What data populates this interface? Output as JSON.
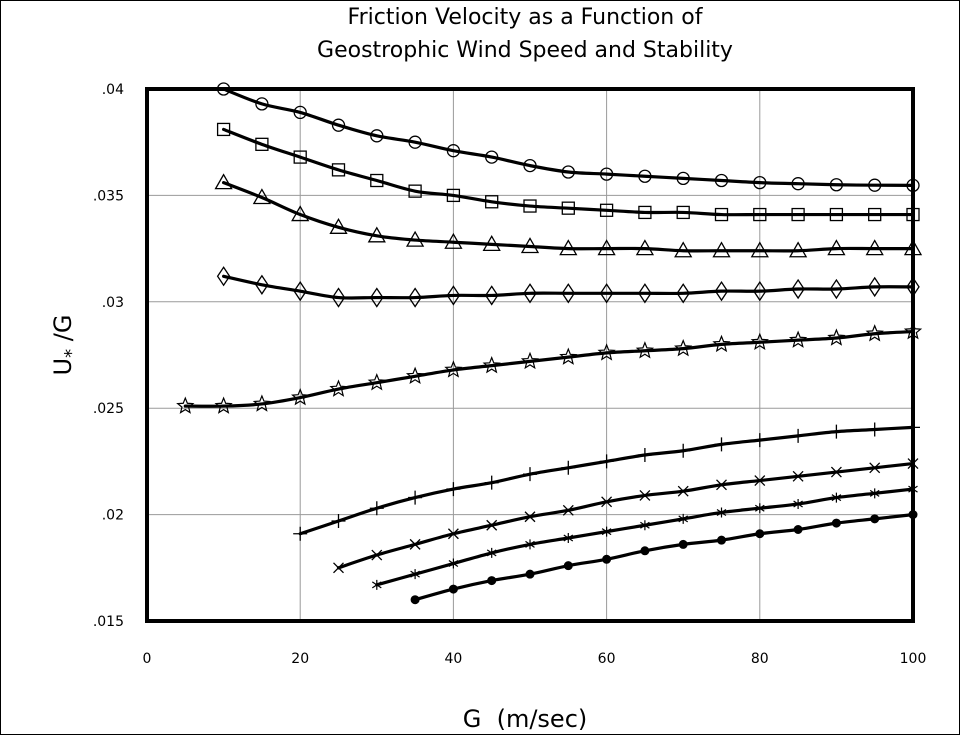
{
  "chart_data": {
    "type": "line",
    "title": "Friction Velocity as a Function of",
    "subtitle": "Geostrophic Wind Speed and Stability",
    "xlabel": "G  (m/sec)",
    "ylabel_main": "U",
    "ylabel_sub": "*",
    "ylabel_tail": " /G",
    "xlim": [
      0,
      100
    ],
    "ylim": [
      0.015,
      0.04
    ],
    "grid": true,
    "x_ticks": [
      {
        "value": 0,
        "label": "0"
      },
      {
        "value": 20,
        "label": "20"
      },
      {
        "value": 40,
        "label": "40"
      },
      {
        "value": 60,
        "label": "60"
      },
      {
        "value": 80,
        "label": "80"
      },
      {
        "value": 100,
        "label": "100"
      }
    ],
    "y_ticks": [
      {
        "value": 0.015,
        "label": ".015"
      },
      {
        "value": 0.02,
        "label": ".02"
      },
      {
        "value": 0.025,
        "label": ".025"
      },
      {
        "value": 0.03,
        "label": ".03"
      },
      {
        "value": 0.035,
        "label": ".035"
      },
      {
        "value": 0.04,
        "label": ".04"
      }
    ],
    "series": [
      {
        "marker": "circle",
        "x": [
          10,
          15,
          20,
          25,
          30,
          35,
          40,
          45,
          50,
          55,
          60,
          65,
          70,
          75,
          80,
          85,
          90,
          95,
          100
        ],
        "y": [
          0.04,
          0.0393,
          0.0389,
          0.0383,
          0.0378,
          0.0375,
          0.0371,
          0.0368,
          0.0364,
          0.0361,
          0.036,
          0.0359,
          0.0358,
          0.0357,
          0.0356,
          0.03555,
          0.0355,
          0.03548,
          0.03547
        ]
      },
      {
        "marker": "square",
        "x": [
          10,
          15,
          20,
          25,
          30,
          35,
          40,
          45,
          50,
          55,
          60,
          65,
          70,
          75,
          80,
          85,
          90,
          95,
          100
        ],
        "y": [
          0.0381,
          0.0374,
          0.0368,
          0.0362,
          0.0357,
          0.0352,
          0.035,
          0.0347,
          0.0345,
          0.0344,
          0.0343,
          0.0342,
          0.0342,
          0.0341,
          0.0341,
          0.0341,
          0.0341,
          0.0341,
          0.0341
        ]
      },
      {
        "marker": "triangle",
        "x": [
          10,
          15,
          20,
          25,
          30,
          35,
          40,
          45,
          50,
          55,
          60,
          65,
          70,
          75,
          80,
          85,
          90,
          95,
          100
        ],
        "y": [
          0.0356,
          0.0349,
          0.0341,
          0.0335,
          0.0331,
          0.0329,
          0.0328,
          0.0327,
          0.0326,
          0.0325,
          0.0325,
          0.0325,
          0.0324,
          0.0324,
          0.0324,
          0.0324,
          0.0325,
          0.0325,
          0.0325
        ]
      },
      {
        "marker": "diamond",
        "x": [
          10,
          15,
          20,
          25,
          30,
          35,
          40,
          45,
          50,
          55,
          60,
          65,
          70,
          75,
          80,
          85,
          90,
          95,
          100
        ],
        "y": [
          0.0312,
          0.0308,
          0.0305,
          0.0302,
          0.0302,
          0.0302,
          0.0303,
          0.0303,
          0.0304,
          0.0304,
          0.0304,
          0.0304,
          0.0304,
          0.0305,
          0.0305,
          0.0306,
          0.0306,
          0.0307,
          0.0307
        ]
      },
      {
        "marker": "star",
        "x": [
          5,
          10,
          15,
          20,
          25,
          30,
          35,
          40,
          45,
          50,
          55,
          60,
          65,
          70,
          75,
          80,
          85,
          90,
          95,
          100
        ],
        "y": [
          0.0251,
          0.0251,
          0.0252,
          0.0255,
          0.0259,
          0.0262,
          0.0265,
          0.0268,
          0.027,
          0.0272,
          0.0274,
          0.0276,
          0.0277,
          0.0278,
          0.028,
          0.0281,
          0.0282,
          0.0283,
          0.0285,
          0.0286
        ]
      },
      {
        "marker": "plus",
        "x": [
          20,
          25,
          30,
          35,
          40,
          45,
          50,
          55,
          60,
          65,
          70,
          75,
          80,
          85,
          90,
          95,
          100
        ],
        "y": [
          0.0191,
          0.0197,
          0.0203,
          0.0208,
          0.0212,
          0.0215,
          0.0219,
          0.0222,
          0.0225,
          0.0228,
          0.023,
          0.0233,
          0.0235,
          0.0237,
          0.0239,
          0.024,
          0.0241
        ]
      },
      {
        "marker": "cross",
        "x": [
          25,
          30,
          35,
          40,
          45,
          50,
          55,
          60,
          65,
          70,
          75,
          80,
          85,
          90,
          95,
          100
        ],
        "y": [
          0.0175,
          0.0181,
          0.0186,
          0.0191,
          0.0195,
          0.0199,
          0.0202,
          0.0206,
          0.0209,
          0.0211,
          0.0214,
          0.0216,
          0.0218,
          0.022,
          0.0222,
          0.0224
        ]
      },
      {
        "marker": "asterisk",
        "x": [
          30,
          35,
          40,
          45,
          50,
          55,
          60,
          65,
          70,
          75,
          80,
          85,
          90,
          95,
          100
        ],
        "y": [
          0.0167,
          0.0172,
          0.0177,
          0.0182,
          0.0186,
          0.0189,
          0.0192,
          0.0195,
          0.0198,
          0.0201,
          0.0203,
          0.0205,
          0.0208,
          0.021,
          0.0212
        ]
      },
      {
        "marker": "dot",
        "x": [
          35,
          40,
          45,
          50,
          55,
          60,
          65,
          70,
          75,
          80,
          85,
          90,
          95,
          100
        ],
        "y": [
          0.016,
          0.0165,
          0.0169,
          0.0172,
          0.0176,
          0.0179,
          0.0183,
          0.0186,
          0.0188,
          0.0191,
          0.0193,
          0.0196,
          0.0198,
          0.02
        ]
      }
    ]
  }
}
